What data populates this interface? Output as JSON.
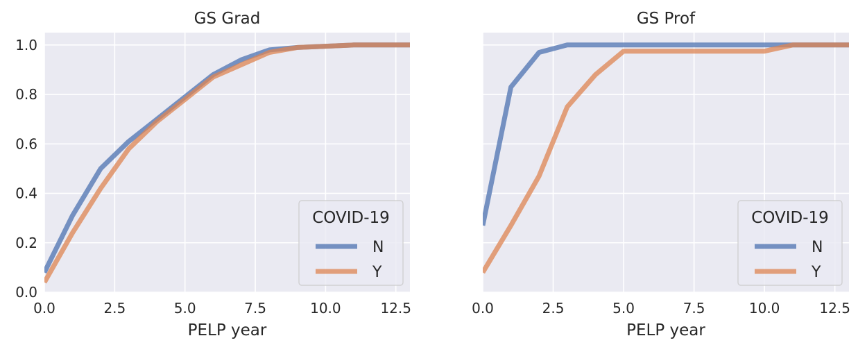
{
  "chart_data": [
    {
      "type": "line",
      "title": "GS Grad",
      "xlabel": "PELP year",
      "ylabel": "",
      "xlim": [
        0,
        13
      ],
      "ylim": [
        0,
        1.05
      ],
      "xticks": [
        0,
        2.5,
        5,
        7.5,
        10,
        12.5
      ],
      "xtick_labels": [
        "0.0",
        "2.5",
        "5.0",
        "7.5",
        "10.0",
        "12.5"
      ],
      "yticks": [
        0,
        0.2,
        0.4,
        0.6,
        0.8,
        1.0
      ],
      "ytick_labels": [
        "0.0",
        "0.2",
        "0.4",
        "0.6",
        "0.8",
        "1.0"
      ],
      "show_yticklabels": true,
      "grid": true,
      "legend": {
        "title": "COVID-19",
        "placement": "lower-right"
      },
      "series": [
        {
          "name": "N",
          "color": "#4c72b0",
          "x": [
            0,
            1,
            2,
            3,
            4,
            5,
            6,
            7,
            8,
            9,
            10,
            11,
            12,
            13
          ],
          "y": [
            0.08,
            0.31,
            0.5,
            0.61,
            0.7,
            0.79,
            0.88,
            0.94,
            0.98,
            0.99,
            0.995,
            1.0,
            1.0,
            1.0
          ]
        },
        {
          "name": "Y",
          "color": "#dd8452",
          "x": [
            0,
            1,
            2,
            3,
            4,
            5,
            6,
            7,
            8,
            9,
            10,
            11,
            12,
            13
          ],
          "y": [
            0.04,
            0.24,
            0.42,
            0.58,
            0.69,
            0.78,
            0.87,
            0.92,
            0.97,
            0.99,
            0.995,
            1.0,
            1.0,
            1.0
          ]
        }
      ]
    },
    {
      "type": "line",
      "title": "GS Prof",
      "xlabel": "PELP year",
      "ylabel": "",
      "xlim": [
        0,
        13
      ],
      "ylim": [
        0,
        1.05
      ],
      "xticks": [
        0,
        2.5,
        5,
        7.5,
        10,
        12.5
      ],
      "xtick_labels": [
        "0.0",
        "2.5",
        "5.0",
        "7.5",
        "10.0",
        "12.5"
      ],
      "yticks": [
        0,
        0.2,
        0.4,
        0.6,
        0.8,
        1.0
      ],
      "ytick_labels": [],
      "show_yticklabels": false,
      "grid": true,
      "legend": {
        "title": "COVID-19",
        "placement": "lower-right"
      },
      "series": [
        {
          "name": "N",
          "color": "#4c72b0",
          "x": [
            0,
            1,
            2,
            3,
            4,
            5,
            6,
            7,
            8,
            9,
            10,
            11,
            12,
            13
          ],
          "y": [
            0.27,
            0.83,
            0.97,
            1.0,
            1.0,
            1.0,
            1.0,
            1.0,
            1.0,
            1.0,
            1.0,
            1.0,
            1.0,
            1.0
          ]
        },
        {
          "name": "Y",
          "color": "#dd8452",
          "x": [
            0,
            1,
            2,
            3,
            4,
            5,
            6,
            7,
            8,
            9,
            10,
            11,
            12,
            13
          ],
          "y": [
            0.08,
            0.27,
            0.47,
            0.75,
            0.88,
            0.975,
            0.975,
            0.975,
            0.975,
            0.975,
            0.975,
            1.0,
            1.0,
            1.0
          ]
        }
      ]
    }
  ],
  "style": {
    "plot_background": "#eaeaf2",
    "grid_color": "#ffffff",
    "legend_background": "#eaeaf2",
    "legend_border": "#cccccc"
  }
}
